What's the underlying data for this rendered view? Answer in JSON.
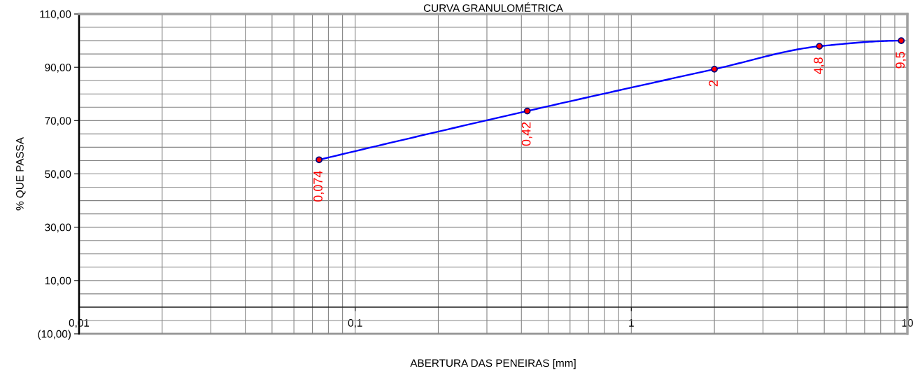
{
  "chart_data": {
    "type": "line",
    "title": "CURVA GRANULOMÉTRICA",
    "xlabel": "ABERTURA DAS PENEIRAS [mm]",
    "ylabel": "% QUE PASSA",
    "log": "x",
    "xlim": [
      0.01,
      10
    ],
    "xticks": [
      {
        "value": 0.01,
        "label": "0,01"
      },
      {
        "value": 0.02,
        "label": null
      },
      {
        "value": 0.03,
        "label": null
      },
      {
        "value": 0.04,
        "label": null
      },
      {
        "value": 0.05,
        "label": null
      },
      {
        "value": 0.06,
        "label": null
      },
      {
        "value": 0.07,
        "label": null
      },
      {
        "value": 0.08,
        "label": null
      },
      {
        "value": 0.09,
        "label": null
      },
      {
        "value": 0.1,
        "label": "0,1"
      },
      {
        "value": 0.2,
        "label": null
      },
      {
        "value": 0.3,
        "label": null
      },
      {
        "value": 0.4,
        "label": null
      },
      {
        "value": 0.5,
        "label": null
      },
      {
        "value": 0.6,
        "label": null
      },
      {
        "value": 0.7,
        "label": null
      },
      {
        "value": 0.8,
        "label": null
      },
      {
        "value": 0.9,
        "label": null
      },
      1,
      {
        "value": 2,
        "label": null
      },
      {
        "value": 3,
        "label": null
      },
      {
        "value": 4,
        "label": null
      },
      {
        "value": 5,
        "label": null
      },
      {
        "value": 6,
        "label": null
      },
      {
        "value": 7,
        "label": null
      },
      {
        "value": 8,
        "label": null
      },
      {
        "value": 9,
        "label": null
      },
      10
    ],
    "ylim": [
      -10,
      110
    ],
    "yticks": [
      {
        "value": -10,
        "label": "(10,00)"
      },
      {
        "value": -5,
        "label": null
      },
      {
        "value": 0,
        "label": null
      },
      {
        "value": 5,
        "label": null
      },
      {
        "value": 10,
        "label": "10,00"
      },
      {
        "value": 15,
        "label": null
      },
      {
        "value": 20,
        "label": null
      },
      {
        "value": 25,
        "label": null
      },
      {
        "value": 30,
        "label": "30,00"
      },
      {
        "value": 35,
        "label": null
      },
      {
        "value": 40,
        "label": null
      },
      {
        "value": 45,
        "label": null
      },
      {
        "value": 50,
        "label": "50,00"
      },
      {
        "value": 55,
        "label": null
      },
      {
        "value": 60,
        "label": null
      },
      {
        "value": 65,
        "label": null
      },
      {
        "value": 70,
        "label": "70,00"
      },
      {
        "value": 75,
        "label": null
      },
      {
        "value": 80,
        "label": null
      },
      {
        "value": 85,
        "label": null
      },
      {
        "value": 90,
        "label": "90,00"
      },
      {
        "value": 95,
        "label": null
      },
      {
        "value": 100,
        "label": null
      },
      {
        "value": 105,
        "label": null
      },
      {
        "value": 110,
        "label": "110,00"
      }
    ],
    "grid": true,
    "marker": "circle",
    "line_style": "solid",
    "x": [
      0.074,
      0.42,
      2,
      4.8,
      9.5
    ],
    "series": [
      {
        "color": "#0000ff",
        "colors": [
          "#ff0000",
          "#ff0000",
          "#ff0000",
          "#ff0000",
          "#ff0000"
        ],
        "values": [
          55.3,
          73.6,
          89.3,
          97.9,
          100
        ]
      }
    ],
    "annotations": [
      {
        "text": "0,074",
        "x": 0.074,
        "y": 55.3
      },
      {
        "text": "0,42",
        "x": 0.42,
        "y": 73.6
      },
      {
        "text": "2",
        "x": 2,
        "y": 89.3
      },
      {
        "text": "4,8",
        "x": 4.8,
        "y": 97.9
      },
      {
        "text": "9,5",
        "x": 9.5,
        "y": 100
      }
    ]
  }
}
